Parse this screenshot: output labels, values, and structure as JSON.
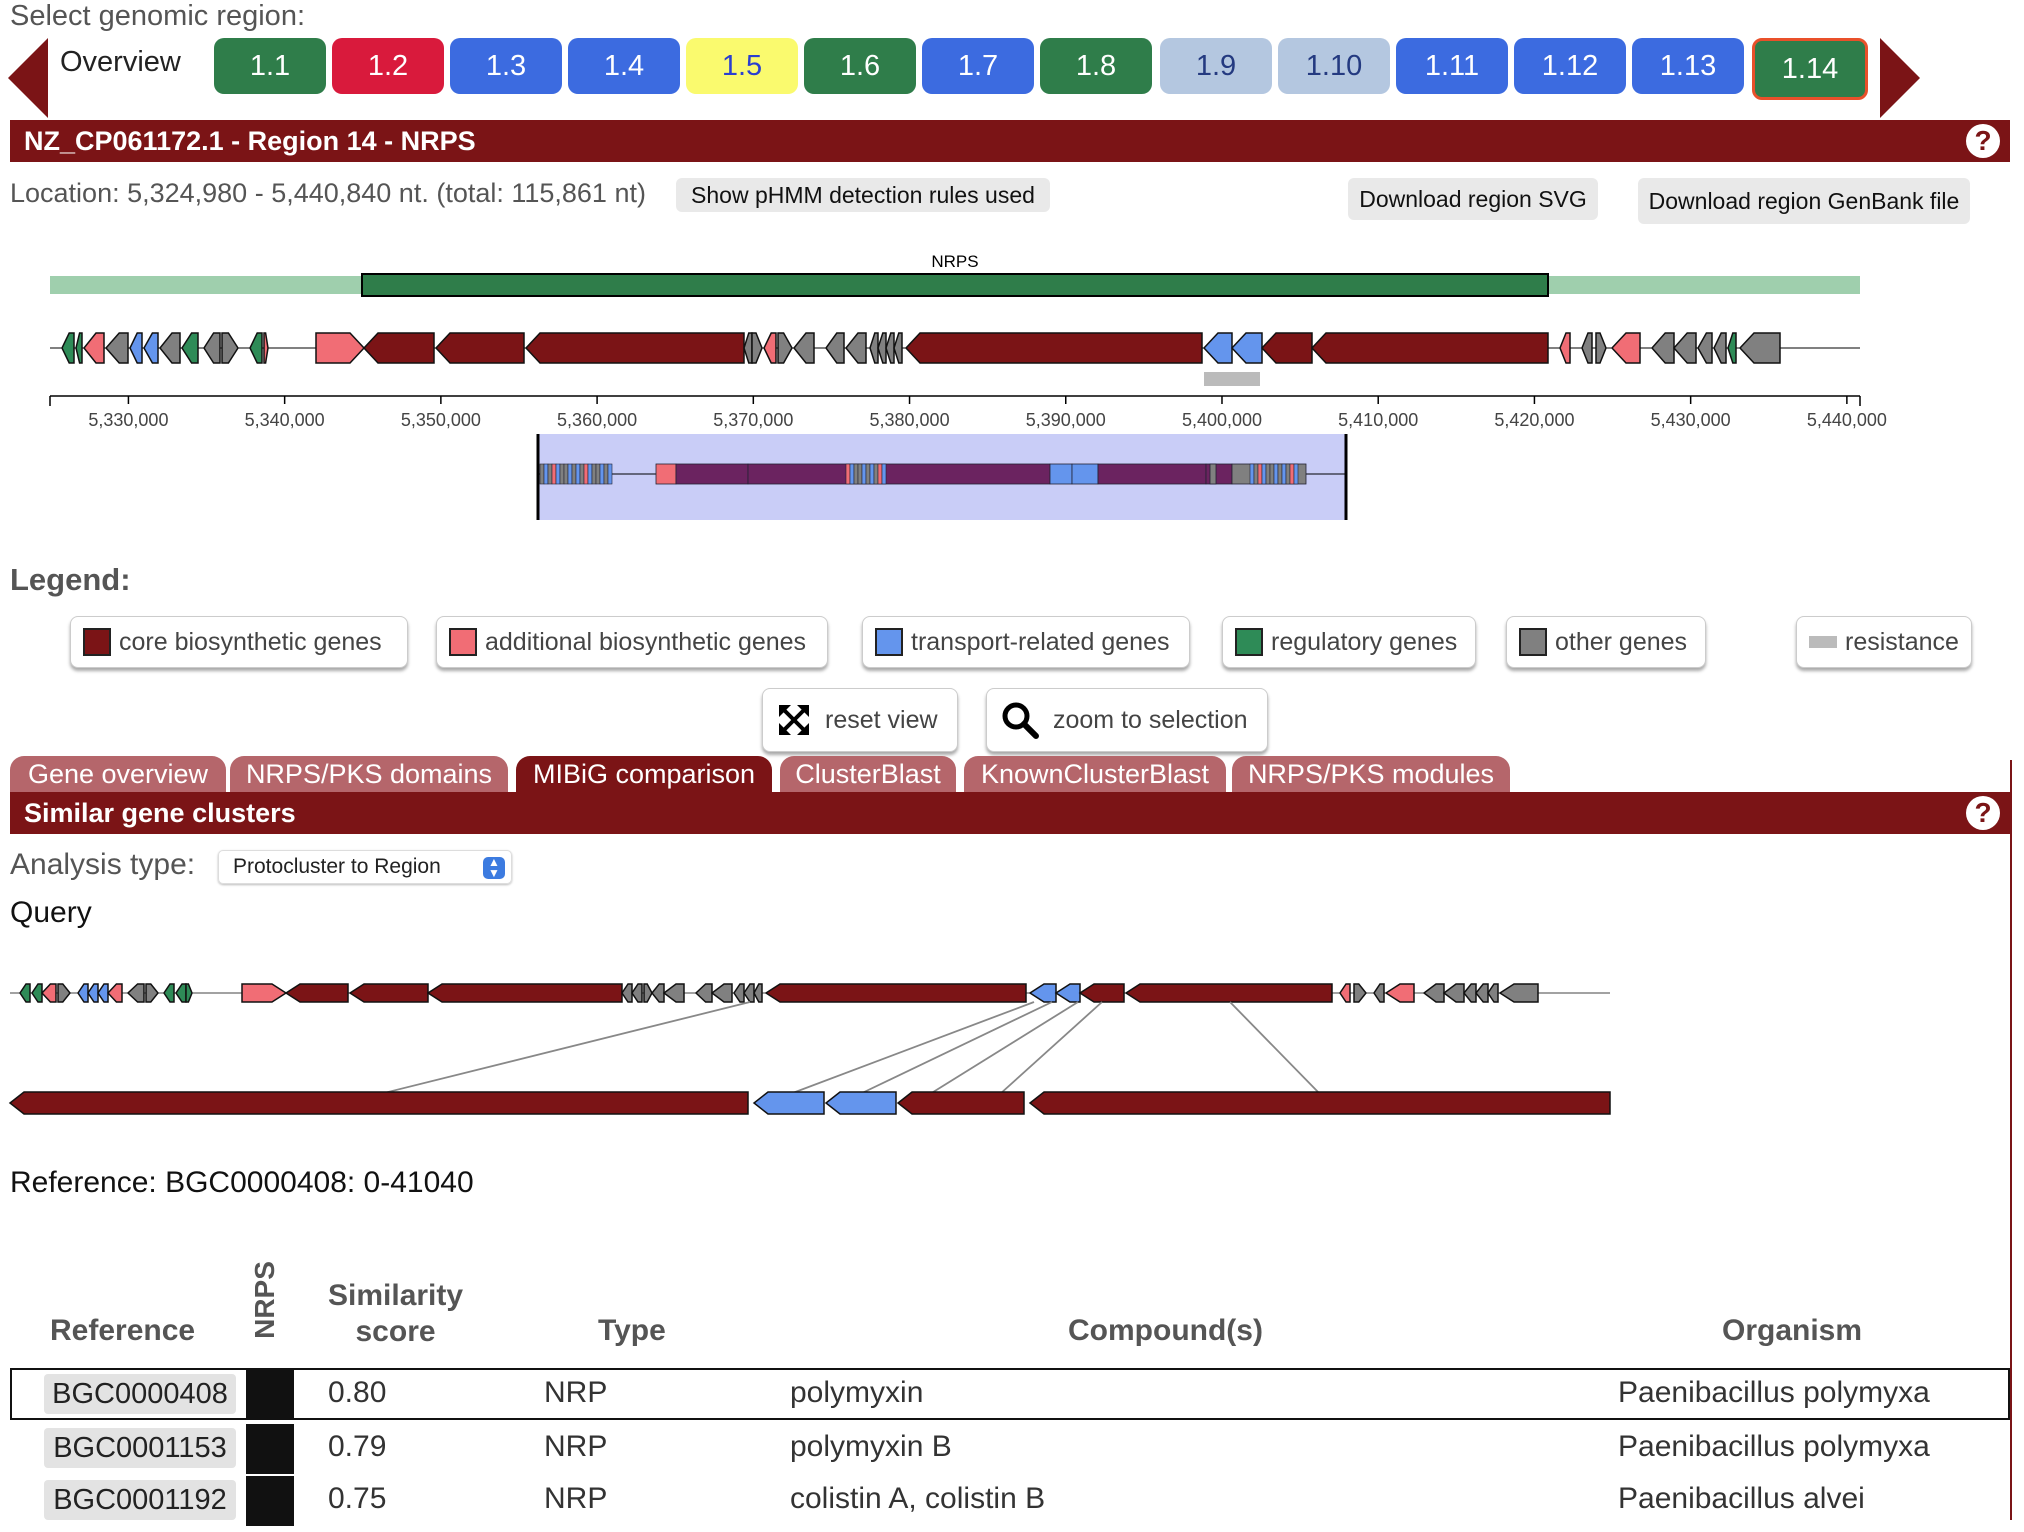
{
  "nav": {
    "select_label": "Select genomic region:",
    "overview_label": "Overview",
    "regions": [
      {
        "label": "1.1",
        "color": "#2f7d4a",
        "text": "#fff"
      },
      {
        "label": "1.2",
        "color": "#d91a3c",
        "text": "#fff"
      },
      {
        "label": "1.3",
        "color": "#3c6be0",
        "text": "#fff"
      },
      {
        "label": "1.4",
        "color": "#3c6be0",
        "text": "#fff"
      },
      {
        "label": "1.5",
        "color": "#fafa6e",
        "text": "#2a3fd0"
      },
      {
        "label": "1.6",
        "color": "#2f7d4a",
        "text": "#fff"
      },
      {
        "label": "1.7",
        "color": "#3c6be0",
        "text": "#fff"
      },
      {
        "label": "1.8",
        "color": "#2f7d4a",
        "text": "#fff"
      },
      {
        "label": "1.9",
        "color": "#b4c7e0",
        "text": "#243a80"
      },
      {
        "label": "1.10",
        "color": "#b4c7e0",
        "text": "#243a80"
      },
      {
        "label": "1.11",
        "color": "#3c6be0",
        "text": "#fff"
      },
      {
        "label": "1.12",
        "color": "#3c6be0",
        "text": "#fff"
      },
      {
        "label": "1.13",
        "color": "#3c6be0",
        "text": "#fff"
      },
      {
        "label": "1.14",
        "color": "#2f7d4a",
        "text": "#fff"
      }
    ]
  },
  "region": {
    "title": "NZ_CP061172.1 - Region 14 - NRPS",
    "help_icon": "?",
    "location": "Location: 5,324,980 - 5,440,840 nt. (total: 115,861 nt)",
    "show_rules_label": "Show pHMM detection rules used",
    "download_svg_label": "Download region SVG",
    "download_genbank_label": "Download region GenBank file",
    "protocluster_label": "NRPS",
    "axis_ticks": [
      "5,330,000",
      "5,340,000",
      "5,350,000",
      "5,360,000",
      "5,370,000",
      "5,380,000",
      "5,390,000",
      "5,400,000",
      "5,410,000",
      "5,420,000",
      "5,430,000",
      "5,440,000"
    ]
  },
  "legend": {
    "title": "Legend:",
    "items": [
      {
        "label": "core biosynthetic genes",
        "color": "#7b1416"
      },
      {
        "label": "additional biosynthetic genes",
        "color": "#f16d75"
      },
      {
        "label": "transport-related genes",
        "color": "#6495ed"
      },
      {
        "label": "regulatory genes",
        "color": "#2e8b57"
      },
      {
        "label": "other genes",
        "color": "#808080"
      },
      {
        "label": "resistance",
        "color": "#bbbbbb"
      }
    ]
  },
  "controls": {
    "reset_label": "reset view",
    "zoom_label": "zoom to selection"
  },
  "tabs": [
    "Gene overview",
    "NRPS/PKS domains",
    "MIBiG comparison",
    "ClusterBlast",
    "KnownClusterBlast",
    "NRPS/PKS modules"
  ],
  "active_tab": "MIBiG comparison",
  "similar": {
    "title": "Similar gene clusters",
    "help_icon": "?",
    "analysis_label": "Analysis type:",
    "analysis_value": "Protocluster to Region",
    "query_label": "Query",
    "reference_label": "Reference: BGC0000408: 0-41040"
  },
  "table": {
    "headers": {
      "reference": "Reference",
      "nrps": "NRPS",
      "similarity_line1": "Similarity",
      "similarity_line2": "score",
      "type": "Type",
      "compound": "Compound(s)",
      "organism": "Organism"
    },
    "rows": [
      {
        "reference": "BGC0000408",
        "similarity": "0.80",
        "type": "NRP",
        "compound": "polymyxin",
        "organism": "Paenibacillus polymyxa"
      },
      {
        "reference": "BGC0001153",
        "similarity": "0.79",
        "type": "NRP",
        "compound": "polymyxin B",
        "organism": "Paenibacillus polymyxa"
      },
      {
        "reference": "BGC0001192",
        "similarity": "0.75",
        "type": "NRP",
        "compound": "colistin A, colistin B",
        "organism": "Paenibacillus alvei"
      }
    ]
  }
}
